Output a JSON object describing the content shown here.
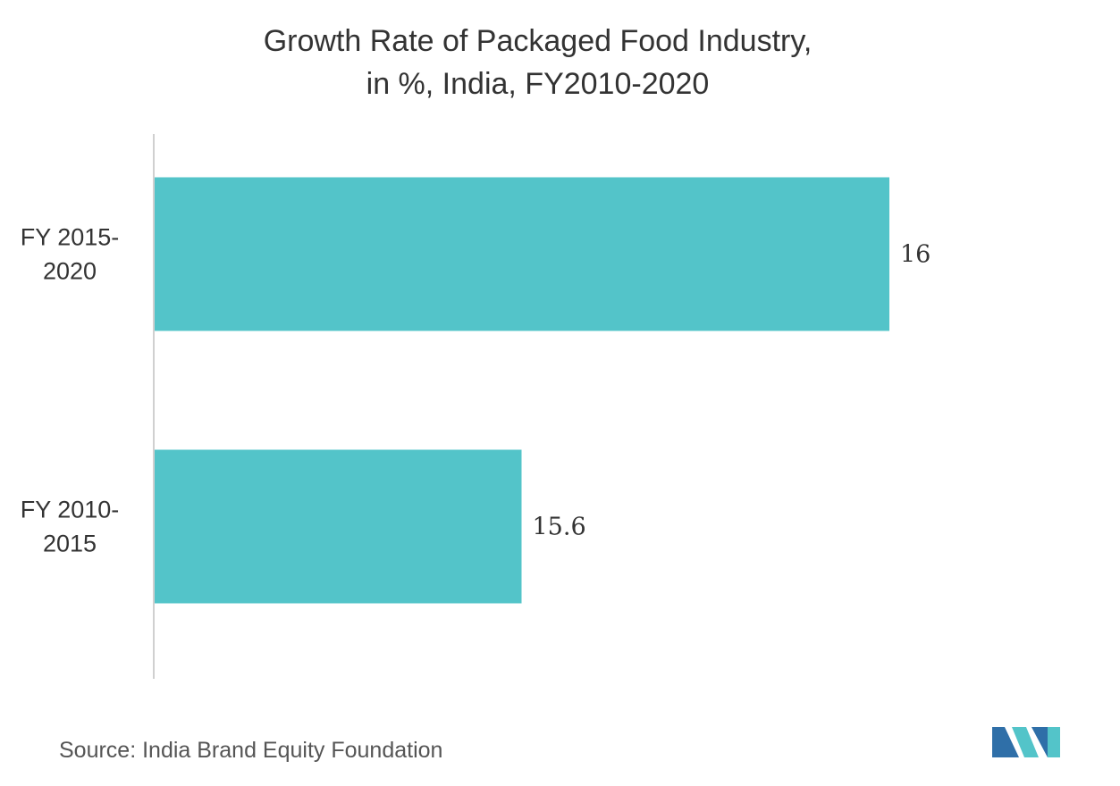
{
  "chart_data": {
    "type": "bar",
    "orientation": "horizontal",
    "title": "Growth Rate of Packaged Food Industry,",
    "subtitle": "in %, India, FY2010-2020",
    "categories": [
      [
        "FY 2015-",
        "2020"
      ],
      [
        "FY 2010-",
        "2015"
      ]
    ],
    "values": [
      16,
      15.6
    ],
    "value_labels": [
      "16",
      "15.6"
    ],
    "xlim": [
      15.2,
      16
    ],
    "grid": false,
    "bar_color": "#53c4c9"
  },
  "source": "Source: India Brand Equity Foundation",
  "logo": {
    "icon": "mordor-intelligence-logo-icon",
    "colors": [
      "#2f6fa8",
      "#53c4c9"
    ]
  }
}
